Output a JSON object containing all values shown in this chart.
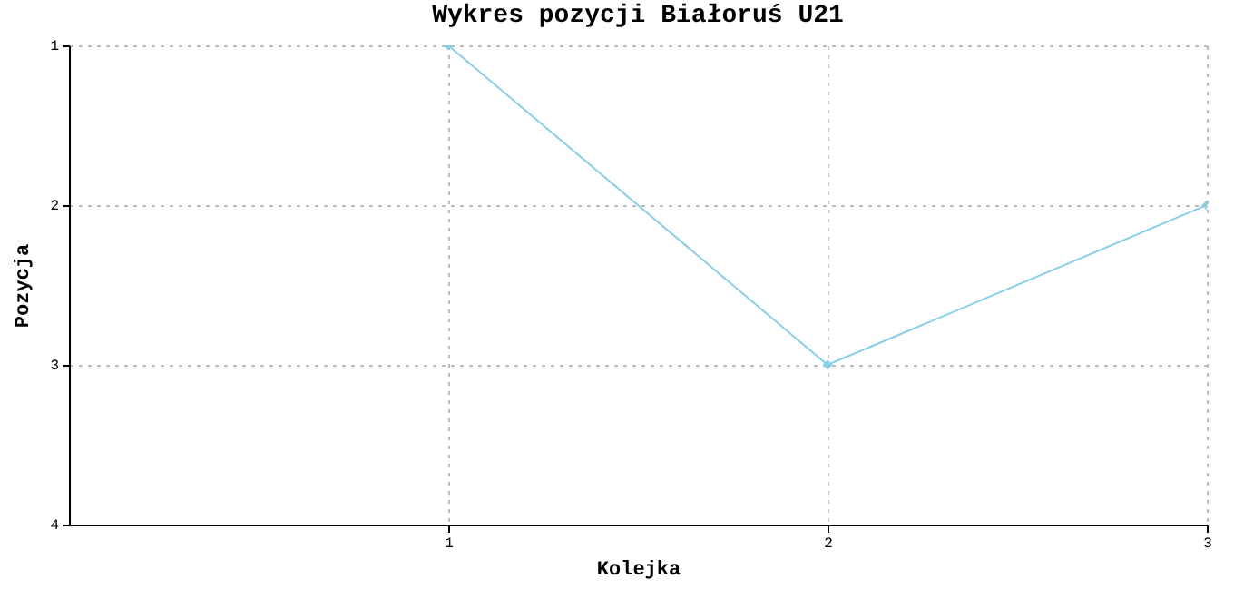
{
  "chart_data": {
    "type": "line",
    "title": "Wykres pozycji Białoruś U21",
    "xlabel": "Kolejka",
    "ylabel": "Pozycja",
    "x": [
      1,
      2,
      3
    ],
    "series": [
      {
        "color": "#87ceeb",
        "values": [
          1,
          3,
          2
        ]
      }
    ],
    "xlim": [
      0,
      3
    ],
    "xticks": [
      1,
      2,
      3
    ],
    "ylim": [
      4,
      1
    ],
    "yticks": [
      1,
      2,
      3,
      4
    ],
    "grid": true,
    "marker": "diamond",
    "line_style": "solid"
  }
}
